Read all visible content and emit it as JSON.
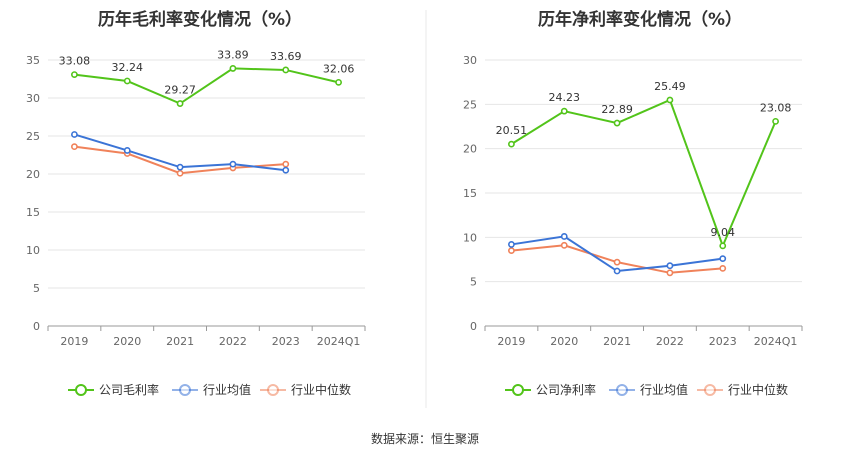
{
  "source": "数据来源：恒生聚源",
  "chart_data": [
    {
      "type": "line",
      "title": "历年毛利率变化情况（%）",
      "categories": [
        "2019",
        "2020",
        "2021",
        "2022",
        "2023",
        "2024Q1"
      ],
      "ylim": [
        0,
        35
      ],
      "yticks": [
        0,
        5,
        10,
        15,
        20,
        25,
        30,
        35
      ],
      "grid": true,
      "legend_position": "bottom",
      "series": [
        {
          "name": "公司毛利率",
          "color": "#52c41a",
          "values": [
            33.08,
            32.24,
            29.27,
            33.89,
            33.69,
            32.06
          ],
          "labels": [
            "33.08",
            "32.24",
            "29.27",
            "33.89",
            "33.69",
            "32.06"
          ]
        },
        {
          "name": "行业均值",
          "color": "#3b74d6",
          "values": [
            25.2,
            23.1,
            20.9,
            21.3,
            20.5,
            null
          ]
        },
        {
          "name": "行业中位数",
          "color": "#f0825a",
          "values": [
            23.6,
            22.7,
            20.1,
            20.8,
            21.3,
            null
          ]
        }
      ]
    },
    {
      "type": "line",
      "title": "历年净利率变化情况（%）",
      "categories": [
        "2019",
        "2020",
        "2021",
        "2022",
        "2023",
        "2024Q1"
      ],
      "ylim": [
        0,
        30
      ],
      "yticks": [
        0,
        5,
        10,
        15,
        20,
        25,
        30
      ],
      "grid": true,
      "legend_position": "bottom",
      "series": [
        {
          "name": "公司净利率",
          "color": "#52c41a",
          "values": [
            20.51,
            24.23,
            22.89,
            25.49,
            9.04,
            23.08
          ],
          "labels": [
            "20.51",
            "24.23",
            "22.89",
            "25.49",
            "9.04",
            "23.08"
          ]
        },
        {
          "name": "行业均值",
          "color": "#3b74d6",
          "values": [
            9.2,
            10.1,
            6.2,
            6.8,
            7.6,
            null
          ]
        },
        {
          "name": "行业中位数",
          "color": "#f0825a",
          "values": [
            8.5,
            9.1,
            7.2,
            6.0,
            6.5,
            null
          ]
        }
      ]
    }
  ]
}
